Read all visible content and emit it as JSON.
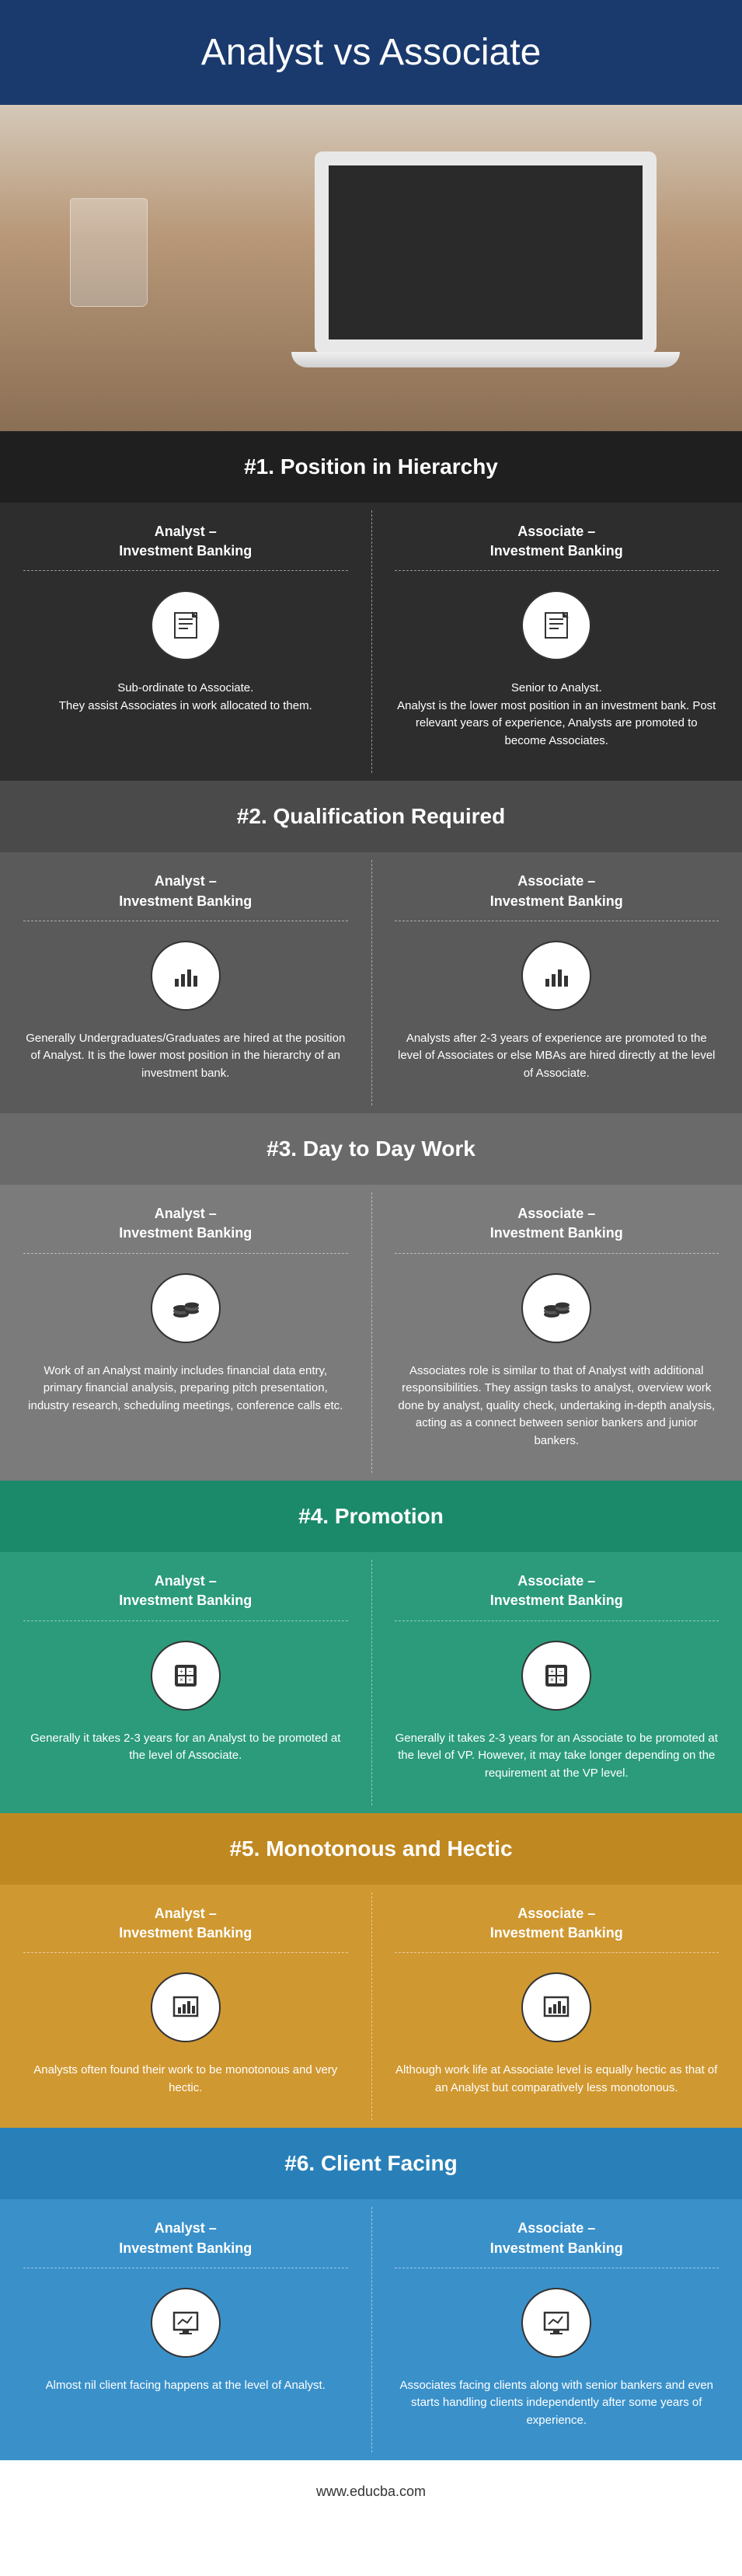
{
  "title": "Analyst vs Associate",
  "footer": "www.educba.com",
  "colors": {
    "title_bar": "#1a3a6e",
    "s1": {
      "header": "#1f1f1f",
      "body": "#2d2d2d"
    },
    "s2": {
      "header": "#4a4a4a",
      "body": "#5a5a5a"
    },
    "s3": {
      "header": "#6a6a6a",
      "body": "#7b7b7b"
    },
    "s4": {
      "header": "#1a8a6a",
      "body": "#2b9b7b"
    },
    "s5": {
      "header": "#c08820",
      "body": "#d09830"
    },
    "s6": {
      "header": "#2980b9",
      "body": "#3a91ca"
    }
  },
  "sections": {
    "s1": {
      "heading": "#1. Position in Hierarchy",
      "left": {
        "title": "Analyst –\nInvestment Banking",
        "desc": "Sub-ordinate to Associate.\nThey assist Associates in work allocated to them.",
        "icon": "document"
      },
      "right": {
        "title": "Associate –\nInvestment Banking",
        "desc": "Senior to Analyst.\nAnalyst is the lower most position in an investment bank. Post relevant years of experience, Analysts are promoted to become Associates.",
        "icon": "document"
      }
    },
    "s2": {
      "heading": "#2. Qualification Required",
      "left": {
        "title": "Analyst –\nInvestment Banking",
        "desc": "Generally Undergraduates/Graduates are hired at the position of Analyst. It is the lower most position in the hierarchy of an investment bank.",
        "icon": "bars"
      },
      "right": {
        "title": "Associate –\nInvestment Banking",
        "desc": "Analysts after 2-3 years of experience are promoted to the level of Associates or else MBAs are hired directly at the level of Associate.",
        "icon": "bars"
      }
    },
    "s3": {
      "heading": "#3. Day to Day Work",
      "left": {
        "title": "Analyst –\nInvestment Banking",
        "desc": "Work of an Analyst mainly includes financial data entry, primary financial analysis, preparing pitch presentation, industry research, scheduling meetings, conference calls etc.",
        "icon": "coins"
      },
      "right": {
        "title": "Associate –\nInvestment Banking",
        "desc": "Associates role is similar to that of Analyst with additional responsibilities. They assign tasks to analyst, overview work done by analyst, quality check, undertaking in-depth analysis, acting as a connect between senior bankers and junior bankers.",
        "icon": "coins"
      }
    },
    "s4": {
      "heading": "#4. Promotion",
      "left": {
        "title": "Analyst –\nInvestment Banking",
        "desc": "Generally it takes 2-3 years for an Analyst to be promoted at the level of Associate.",
        "icon": "calc"
      },
      "right": {
        "title": "Associate –\nInvestment Banking",
        "desc": "Generally it takes 2-3 years for an Associate to be promoted at the level of VP. However, it may take longer depending on the requirement at the VP level.",
        "icon": "calc"
      }
    },
    "s5": {
      "heading": "#5. Monotonous and Hectic",
      "left": {
        "title": "Analyst –\nInvestment Banking",
        "desc": "Analysts often found their work to be monotonous and very hectic.",
        "icon": "chart"
      },
      "right": {
        "title": "Associate –\nInvestment Banking",
        "desc": "Although work life at Associate level is equally hectic as that of an Analyst but comparatively less monotonous.",
        "icon": "chart"
      }
    },
    "s6": {
      "heading": "#6. Client Facing",
      "left": {
        "title": "Analyst –\nInvestment Banking",
        "desc": "Almost nil client facing happens at the level of Analyst.",
        "icon": "screen"
      },
      "right": {
        "title": "Associate –\nInvestment Banking",
        "desc": "Associates facing clients along with senior bankers and even starts handling clients independently after some years of experience.",
        "icon": "screen"
      }
    }
  }
}
